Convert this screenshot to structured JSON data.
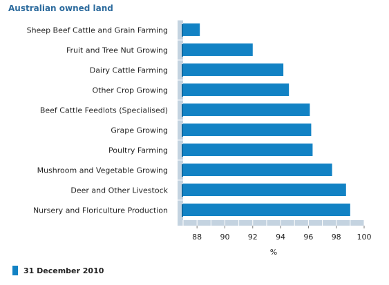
{
  "chart_data": {
    "type": "bar",
    "orientation": "horizontal",
    "title": "Australian owned land",
    "xlabel": "%",
    "ylabel": "",
    "xlim": [
      87,
      100
    ],
    "xticks": [
      88,
      90,
      92,
      94,
      96,
      98,
      100
    ],
    "categories": [
      "Sheep Beef Cattle and Grain Farming",
      "Fruit and Tree Nut Growing",
      "Dairy Cattle Farming",
      "Other Crop Growing",
      "Beef Cattle Feedlots (Specialised)",
      "Grape Growing",
      "Poultry Farming",
      "Mushroom and Vegetable Growing",
      "Deer and Other Livestock",
      "Nursery and Floriculture Production"
    ],
    "series": [
      {
        "name": "31 December 2010",
        "color": "#1282c4",
        "values": [
          88.2,
          92.0,
          94.2,
          94.6,
          96.1,
          96.2,
          96.3,
          97.7,
          98.7,
          99.0
        ]
      }
    ],
    "legend": "bottom-left",
    "grid": false
  }
}
